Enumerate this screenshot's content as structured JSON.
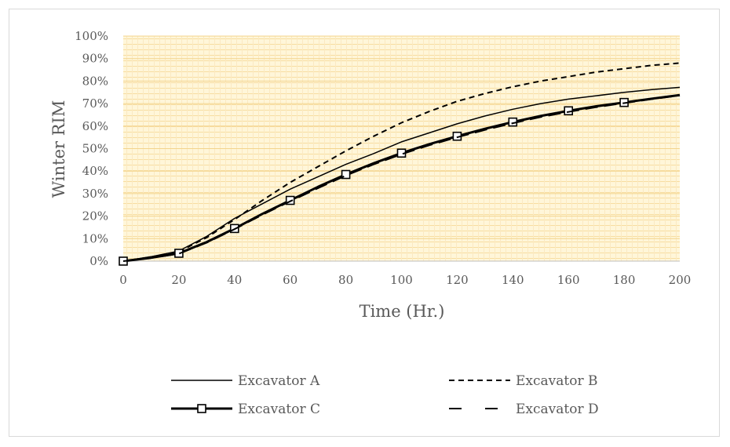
{
  "chart_data": {
    "type": "line",
    "title": "",
    "xlabel": "Time (Hr.)",
    "ylabel": "Winter RIM",
    "xlim": [
      0,
      200
    ],
    "ylim": [
      0,
      100
    ],
    "x_ticks": [
      "0",
      "20",
      "40",
      "60",
      "80",
      "100",
      "120",
      "140",
      "160",
      "180",
      "200"
    ],
    "y_ticks": [
      "0%",
      "10%",
      "20%",
      "30%",
      "40%",
      "50%",
      "60%",
      "70%",
      "80%",
      "90%",
      "100%"
    ],
    "grid": true,
    "legend_position": "bottom",
    "x": [
      0,
      10,
      20,
      30,
      40,
      50,
      60,
      70,
      80,
      90,
      100,
      110,
      120,
      130,
      140,
      150,
      160,
      170,
      180,
      190,
      200
    ],
    "series": [
      {
        "name": "Excavator A",
        "style": "solid",
        "color": "#000000",
        "width": 1.5,
        "markers": false,
        "values": [
          0,
          2,
          4.5,
          11,
          19,
          25.5,
          32,
          37.5,
          43,
          47.8,
          53,
          57,
          61,
          64.5,
          67.5,
          70,
          72,
          73.5,
          75,
          76.2,
          77.2
        ]
      },
      {
        "name": "Excavator B",
        "style": "dashed",
        "color": "#000000",
        "width": 2,
        "markers": false,
        "values": [
          0,
          1.8,
          4.2,
          10.5,
          18.5,
          27,
          35,
          42,
          49,
          55.5,
          61.5,
          66.5,
          71,
          74.5,
          77.5,
          80,
          82,
          84,
          85.5,
          87,
          88
        ]
      },
      {
        "name": "Excavator C",
        "style": "solid",
        "color": "#000000",
        "width": 3,
        "markers": true,
        "marker_x": [
          0,
          20,
          40,
          60,
          80,
          100,
          120,
          140,
          160,
          180
        ],
        "values": [
          0,
          1.5,
          3.5,
          8.5,
          14.5,
          21,
          27,
          33,
          38.5,
          43.5,
          48,
          52,
          55.5,
          58.8,
          61.8,
          64.5,
          66.8,
          68.8,
          70.5,
          72.2,
          73.8
        ]
      },
      {
        "name": "Excavator D",
        "style": "longdash",
        "color": "#000000",
        "width": 2,
        "markers": false,
        "values": [
          0,
          1.4,
          3.3,
          8.2,
          14.2,
          20.6,
          26.6,
          32.4,
          38,
          43,
          47.5,
          51.5,
          55,
          58.3,
          61.3,
          64,
          66.3,
          68.4,
          70.2,
          72,
          73.6
        ]
      }
    ]
  }
}
